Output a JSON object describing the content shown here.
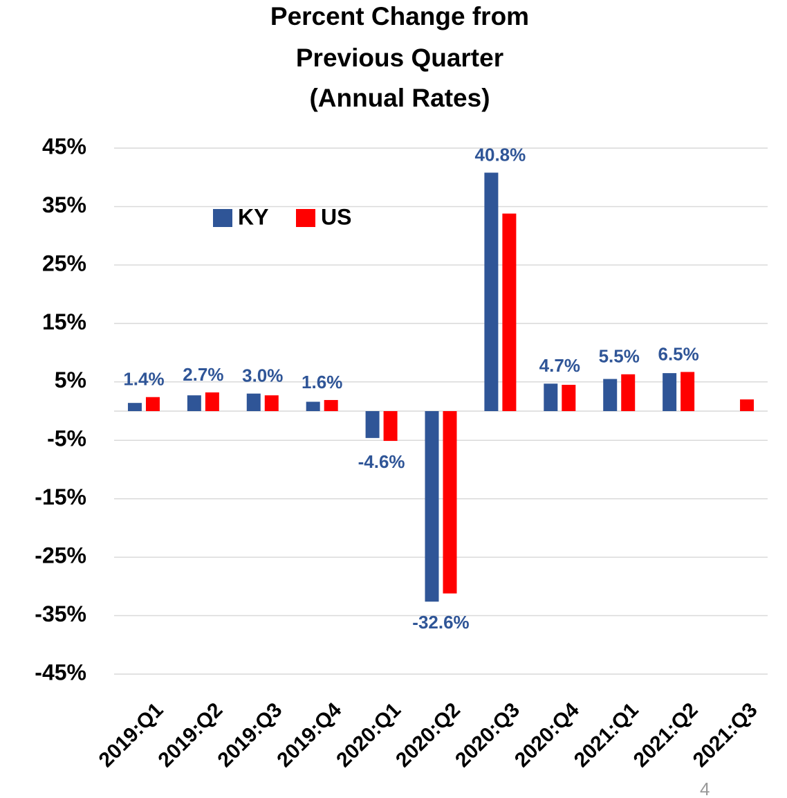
{
  "chart_data": {
    "type": "bar",
    "title": [
      "Percent Change from",
      "Previous Quarter",
      "(Annual Rates)"
    ],
    "categories": [
      "2019:Q1",
      "2019:Q2",
      "2019:Q3",
      "2019:Q4",
      "2020:Q1",
      "2020:Q2",
      "2020:Q3",
      "2020:Q4",
      "2021:Q1",
      "2021:Q2",
      "2021:Q3"
    ],
    "series": [
      {
        "name": "KY",
        "color": "#2f5597",
        "values": [
          1.4,
          2.7,
          3.0,
          1.6,
          -4.6,
          -32.6,
          40.8,
          4.7,
          5.5,
          6.5,
          null
        ],
        "value_labels": [
          "1.4%",
          "2.7%",
          "3.0%",
          "1.6%",
          "-4.6%",
          "-32.6%",
          "40.8%",
          "4.7%",
          "5.5%",
          "6.5%",
          null
        ]
      },
      {
        "name": "US",
        "color": "#ff0000",
        "values": [
          2.4,
          3.2,
          2.7,
          1.9,
          -5.1,
          -31.2,
          33.8,
          4.5,
          6.3,
          6.7,
          2.0
        ]
      }
    ],
    "ylim": [
      -45,
      45
    ],
    "yticks": [
      {
        "value": -45,
        "label": "-45%"
      },
      {
        "value": -35,
        "label": "-35%"
      },
      {
        "value": -25,
        "label": "-25%"
      },
      {
        "value": -15,
        "label": "-15%"
      },
      {
        "value": -5,
        "label": "-5%"
      },
      {
        "value": 5,
        "label": "5%"
      },
      {
        "value": 15,
        "label": "15%"
      },
      {
        "value": 25,
        "label": "25%"
      },
      {
        "value": 35,
        "label": "35%"
      },
      {
        "value": 45,
        "label": "45%"
      }
    ],
    "grid": true,
    "legend": "upper left",
    "page_number": "4"
  }
}
